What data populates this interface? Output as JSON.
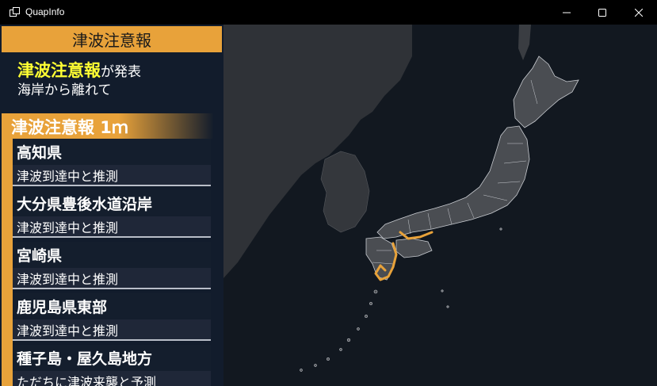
{
  "window": {
    "title": "QuapInfo",
    "minimize_icon": "minimize-icon",
    "maximize_icon": "maximize-icon",
    "close_icon": "close-icon"
  },
  "panel": {
    "header": "津波注意報",
    "announce_main": "津波注意報",
    "announce_suffix": "が発表",
    "announce_line2": "海岸から離れて",
    "level_label": "津波注意報 1ｍ"
  },
  "areas": [
    {
      "name": "高知県",
      "status": "津波到達中と推測"
    },
    {
      "name": "大分県豊後水道沿岸",
      "status": "津波到達中と推測"
    },
    {
      "name": "宮崎県",
      "status": "津波到達中と推測"
    },
    {
      "name": "鹿児島県東部",
      "status": "津波到達中と推測"
    },
    {
      "name": "種子島・屋久島地方",
      "status": "ただちに津波来襲と予測"
    }
  ],
  "colors": {
    "accent": "#e8a23a",
    "highlight": "#ffff33",
    "map_bg": "#121820",
    "land": "#3a3d42",
    "japan_land": "#4a4d52",
    "coast_warning": "#e8a23a"
  }
}
